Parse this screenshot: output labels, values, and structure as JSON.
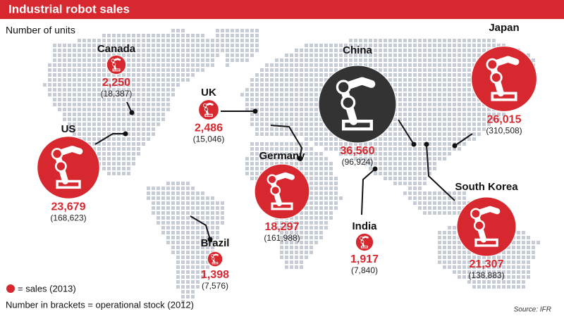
{
  "header": {
    "title": "Industrial robot sales",
    "subtitle": "Number of units"
  },
  "countries": [
    {
      "name": "Canada",
      "sales": {
        "value": 2250,
        "label": "2,250"
      },
      "stock": "(18,387)",
      "color": "#d7282f"
    },
    {
      "name": "US",
      "sales": {
        "value": 23679,
        "label": "23,679"
      },
      "stock": "(168,623)",
      "color": "#d7282f"
    },
    {
      "name": "UK",
      "sales": {
        "value": 2486,
        "label": "2,486"
      },
      "stock": "(15,046)",
      "color": "#d7282f"
    },
    {
      "name": "Germany",
      "sales": {
        "value": 18297,
        "label": "18,297"
      },
      "stock": "(161,988)",
      "color": "#d7282f"
    },
    {
      "name": "Brazil",
      "sales": {
        "value": 1398,
        "label": "1,398"
      },
      "stock": "(7,576)",
      "color": "#d7282f"
    },
    {
      "name": "China",
      "sales": {
        "value": 36560,
        "label": "36,560"
      },
      "stock": "(96,924)",
      "color": "#333333"
    },
    {
      "name": "India",
      "sales": {
        "value": 1917,
        "label": "1,917"
      },
      "stock": "(7,840)",
      "color": "#d7282f"
    },
    {
      "name": "Japan",
      "sales": {
        "value": 26015,
        "label": "26,015"
      },
      "stock": "(310,508)",
      "color": "#d7282f"
    },
    {
      "name": "South Korea",
      "sales": {
        "value": 21307,
        "label": "21,307"
      },
      "stock": "(138,883)",
      "color": "#d7282f"
    }
  ],
  "legend": {
    "sales": "= sales (2013)",
    "stock": "Number in brackets = operational stock (2012)"
  },
  "source": "Source: IFR"
}
